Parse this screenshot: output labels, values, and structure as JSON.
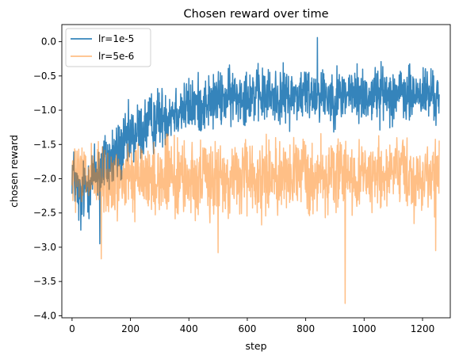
{
  "chart_data": {
    "type": "line",
    "title": "Chosen reward over time",
    "xlabel": "step",
    "ylabel": "chosen reward",
    "xlim": [
      -35,
      1295
    ],
    "ylim": [
      -4.03,
      0.25
    ],
    "xticks": [
      0,
      200,
      400,
      600,
      800,
      1000,
      1200
    ],
    "xtick_labels": [
      "0",
      "200",
      "400",
      "600",
      "800",
      "1000",
      "1200"
    ],
    "yticks": [
      0.0,
      -0.5,
      -1.0,
      -1.5,
      -2.0,
      -2.5,
      -3.0,
      -3.5,
      -4.0
    ],
    "ytick_labels": [
      "0.0",
      "−0.5",
      "−1.0",
      "−1.5",
      "−2.0",
      "−2.5",
      "−3.0",
      "−3.5",
      "−4.0"
    ],
    "grid": false,
    "legend_position": "top-left",
    "series": [
      {
        "name": "lr=1e-5",
        "color": "#1f77b4",
        "opacity": 0.9,
        "points": [
          [
            0,
            -1.85
          ],
          [
            25,
            -2.3
          ],
          [
            50,
            -2.1
          ],
          [
            75,
            -1.95
          ],
          [
            100,
            -1.8
          ],
          [
            125,
            -1.75
          ],
          [
            150,
            -1.65
          ],
          [
            175,
            -1.55
          ],
          [
            200,
            -1.4
          ],
          [
            250,
            -1.25
          ],
          [
            300,
            -1.1
          ],
          [
            350,
            -1.0
          ],
          [
            400,
            -0.95
          ],
          [
            450,
            -0.9
          ],
          [
            500,
            -0.85
          ],
          [
            550,
            -0.8
          ],
          [
            600,
            -0.75
          ],
          [
            650,
            -0.8
          ],
          [
            700,
            -0.8
          ],
          [
            750,
            -0.8
          ],
          [
            800,
            -0.75
          ],
          [
            850,
            -0.75
          ],
          [
            900,
            -0.8
          ],
          [
            950,
            -0.75
          ],
          [
            1000,
            -0.8
          ],
          [
            1050,
            -0.75
          ],
          [
            1100,
            -0.75
          ],
          [
            1150,
            -0.8
          ],
          [
            1200,
            -0.75
          ],
          [
            1257,
            -0.8
          ]
        ],
        "spread": [
          [
            0,
            0.35
          ],
          [
            100,
            0.45
          ],
          [
            200,
            0.4
          ],
          [
            400,
            0.35
          ],
          [
            800,
            0.35
          ],
          [
            1257,
            0.35
          ]
        ],
        "extremes": [
          [
            30,
            -2.75
          ],
          [
            95,
            -2.95
          ],
          [
            840,
            0.06
          ],
          [
            1258,
            -1.1
          ]
        ]
      },
      {
        "name": "lr=5e-6",
        "color": "#ff7f0e",
        "opacity": 0.5,
        "points": [
          [
            0,
            -1.95
          ],
          [
            50,
            -2.0
          ],
          [
            100,
            -2.05
          ],
          [
            150,
            -2.05
          ],
          [
            200,
            -2.0
          ],
          [
            300,
            -2.0
          ],
          [
            400,
            -2.0
          ],
          [
            500,
            -2.0
          ],
          [
            600,
            -2.0
          ],
          [
            700,
            -1.95
          ],
          [
            800,
            -1.95
          ],
          [
            900,
            -1.95
          ],
          [
            1000,
            -1.95
          ],
          [
            1100,
            -1.95
          ],
          [
            1200,
            -1.95
          ],
          [
            1257,
            -1.95
          ]
        ],
        "spread": [
          [
            0,
            0.4
          ],
          [
            200,
            0.45
          ],
          [
            600,
            0.45
          ],
          [
            1257,
            0.45
          ]
        ],
        "extremes": [
          [
            100,
            -3.17
          ],
          [
            500,
            -3.08
          ],
          [
            935,
            -3.82
          ],
          [
            1245,
            -3.05
          ]
        ]
      }
    ]
  }
}
